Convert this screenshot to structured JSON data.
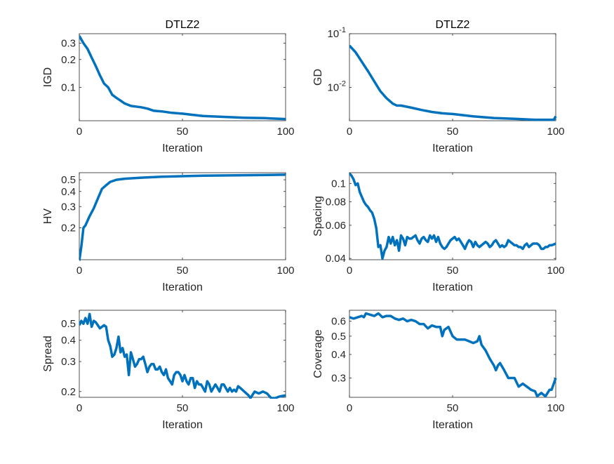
{
  "chart_data": [
    {
      "type": "line",
      "title": "DTLZ2",
      "xlabel": "Iteration",
      "ylabel": "IGD",
      "yscale": "log",
      "xlim": [
        0,
        100
      ],
      "ylim": [
        0.0436,
        0.38
      ],
      "xticks": [
        0,
        50,
        100
      ],
      "yticks": [
        0.1,
        0.2,
        0.3
      ],
      "yticklabels": [
        "0.1",
        "0.2",
        "0.3"
      ],
      "x": [
        0,
        2,
        4,
        6,
        8,
        10,
        12,
        14,
        16,
        18,
        20,
        22,
        25,
        30,
        33,
        36,
        40,
        45,
        50,
        55,
        60,
        70,
        80,
        90,
        100
      ],
      "y": [
        0.36,
        0.3,
        0.26,
        0.21,
        0.17,
        0.135,
        0.11,
        0.1,
        0.083,
        0.077,
        0.072,
        0.067,
        0.063,
        0.061,
        0.059,
        0.056,
        0.055,
        0.053,
        0.052,
        0.0505,
        0.049,
        0.048,
        0.047,
        0.0465,
        0.0455
      ]
    },
    {
      "type": "line",
      "title": "DTLZ2",
      "xlabel": "Iteration",
      "ylabel": "GD",
      "yscale": "log",
      "xlim": [
        0,
        100
      ],
      "ylim": [
        0.0024,
        0.1
      ],
      "xticks": [
        0,
        50,
        100
      ],
      "yticks": [
        0.01,
        0.1
      ],
      "yticklabels": [
        "10^-2",
        "10^-1"
      ],
      "x": [
        0,
        3,
        6,
        9,
        12,
        15,
        18,
        21,
        23,
        25,
        30,
        35,
        40,
        45,
        50,
        60,
        70,
        80,
        90,
        99,
        100
      ],
      "y": [
        0.06,
        0.045,
        0.03,
        0.02,
        0.013,
        0.0085,
        0.0063,
        0.005,
        0.0046,
        0.0046,
        0.0042,
        0.0038,
        0.0035,
        0.0033,
        0.0032,
        0.0029,
        0.0027,
        0.0026,
        0.0025,
        0.0025,
        0.0029
      ]
    },
    {
      "type": "line",
      "title": "",
      "xlabel": "Iteration",
      "ylabel": "HV",
      "yscale": "log",
      "xlim": [
        0,
        100
      ],
      "ylim": [
        0.109,
        0.572
      ],
      "xticks": [
        0,
        50,
        100
      ],
      "yticks": [
        0.2,
        0.3,
        0.4,
        0.5
      ],
      "yticklabels": [
        "0.2",
        "0.3",
        "0.4",
        "0.5"
      ],
      "x": [
        0,
        1,
        2,
        3,
        5,
        7,
        9,
        11,
        13,
        15,
        18,
        22,
        30,
        40,
        60,
        80,
        100
      ],
      "y": [
        0.107,
        0.14,
        0.2,
        0.21,
        0.25,
        0.29,
        0.35,
        0.42,
        0.45,
        0.48,
        0.5,
        0.51,
        0.52,
        0.53,
        0.54,
        0.545,
        0.55
      ]
    },
    {
      "type": "line",
      "title": "",
      "xlabel": "Iteration",
      "ylabel": "Spacing",
      "yscale": "log",
      "xlim": [
        0,
        100
      ],
      "ylim": [
        0.0394,
        0.114
      ],
      "xticks": [
        0,
        50,
        100
      ],
      "yticks": [
        0.04,
        0.06,
        0.08,
        0.1
      ],
      "yticklabels": [
        "0.04",
        "0.06",
        "0.08",
        "0.1"
      ],
      "x": [
        0,
        1,
        2,
        3,
        4,
        5,
        6,
        7,
        8,
        9,
        10,
        11,
        12,
        13,
        14,
        15,
        16,
        17,
        18,
        19,
        20,
        21,
        22,
        23,
        24,
        25,
        26,
        27,
        28,
        29,
        30,
        31,
        32,
        33,
        34,
        35,
        36,
        37,
        38,
        39,
        40,
        41,
        42,
        43,
        44,
        45,
        46,
        47,
        48,
        49,
        50,
        51,
        52,
        53,
        54,
        55,
        56,
        57,
        58,
        59,
        60,
        61,
        62,
        63,
        64,
        65,
        66,
        67,
        68,
        69,
        70,
        71,
        72,
        73,
        74,
        75,
        76,
        77,
        78,
        79,
        80,
        81,
        82,
        83,
        84,
        85,
        86,
        87,
        88,
        89,
        90,
        91,
        92,
        93,
        94,
        95,
        96,
        97,
        98,
        99,
        100
      ],
      "y": [
        0.113,
        0.11,
        0.105,
        0.098,
        0.1,
        0.09,
        0.085,
        0.08,
        0.077,
        0.075,
        0.072,
        0.07,
        0.065,
        0.058,
        0.046,
        0.047,
        0.04,
        0.044,
        0.046,
        0.052,
        0.048,
        0.052,
        0.047,
        0.05,
        0.044,
        0.053,
        0.051,
        0.047,
        0.052,
        0.051,
        0.051,
        0.052,
        0.053,
        0.05,
        0.048,
        0.051,
        0.052,
        0.05,
        0.049,
        0.053,
        0.051,
        0.053,
        0.049,
        0.052,
        0.048,
        0.046,
        0.045,
        0.046,
        0.048,
        0.05,
        0.051,
        0.052,
        0.05,
        0.051,
        0.049,
        0.047,
        0.045,
        0.048,
        0.05,
        0.049,
        0.046,
        0.049,
        0.047,
        0.046,
        0.047,
        0.048,
        0.049,
        0.048,
        0.046,
        0.047,
        0.049,
        0.05,
        0.048,
        0.046,
        0.047,
        0.046,
        0.047,
        0.05,
        0.049,
        0.048,
        0.047,
        0.047,
        0.046,
        0.046,
        0.045,
        0.047,
        0.048,
        0.046,
        0.047,
        0.048,
        0.048,
        0.048,
        0.047,
        0.045,
        0.045,
        0.046,
        0.046,
        0.047,
        0.047,
        0.0475,
        0.048
      ]
    },
    {
      "type": "line",
      "title": "",
      "xlabel": "Iteration",
      "ylabel": "Spread",
      "yscale": "log",
      "xlim": [
        0,
        100
      ],
      "ylim": [
        0.185,
        0.6
      ],
      "xticks": [
        0,
        50,
        100
      ],
      "yticks": [
        0.2,
        0.3,
        0.4,
        0.5
      ],
      "yticklabels": [
        "0.2",
        "0.3",
        "0.4",
        "0.5"
      ],
      "x": [
        0,
        1,
        2,
        3,
        4,
        5,
        6,
        7,
        8,
        10,
        12,
        13,
        14,
        15,
        16,
        17,
        18,
        19,
        20,
        21,
        22,
        23,
        24,
        25,
        26,
        27,
        28,
        29,
        30,
        31,
        32,
        33,
        34,
        35,
        36,
        37,
        38,
        39,
        40,
        41,
        42,
        43,
        44,
        45,
        46,
        47,
        48,
        49,
        50,
        51,
        52,
        53,
        54,
        55,
        56,
        57,
        58,
        59,
        60,
        61,
        62,
        63,
        64,
        65,
        66,
        67,
        68,
        69,
        70,
        71,
        72,
        73,
        74,
        75,
        76,
        77,
        78,
        80,
        82,
        83,
        85,
        87,
        89,
        91,
        93,
        95,
        97,
        100
      ],
      "y": [
        0.49,
        0.52,
        0.5,
        0.54,
        0.5,
        0.57,
        0.48,
        0.52,
        0.51,
        0.47,
        0.49,
        0.48,
        0.4,
        0.37,
        0.32,
        0.33,
        0.36,
        0.42,
        0.34,
        0.36,
        0.32,
        0.33,
        0.25,
        0.34,
        0.31,
        0.28,
        0.29,
        0.31,
        0.31,
        0.32,
        0.29,
        0.26,
        0.28,
        0.29,
        0.29,
        0.27,
        0.27,
        0.28,
        0.26,
        0.25,
        0.27,
        0.24,
        0.23,
        0.22,
        0.25,
        0.26,
        0.26,
        0.25,
        0.23,
        0.25,
        0.23,
        0.22,
        0.24,
        0.24,
        0.21,
        0.23,
        0.22,
        0.22,
        0.21,
        0.2,
        0.23,
        0.22,
        0.2,
        0.21,
        0.22,
        0.21,
        0.2,
        0.22,
        0.22,
        0.21,
        0.2,
        0.21,
        0.2,
        0.205,
        0.2,
        0.215,
        0.21,
        0.2,
        0.19,
        0.183,
        0.2,
        0.195,
        0.2,
        0.195,
        0.183,
        0.183,
        0.187,
        0.19
      ]
    },
    {
      "type": "line",
      "title": "",
      "xlabel": "Iteration",
      "ylabel": "Coverage",
      "yscale": "log",
      "xlim": [
        0,
        100
      ],
      "ylim": [
        0.237,
        0.686
      ],
      "xticks": [
        0,
        50,
        100
      ],
      "yticks": [
        0.3,
        0.4,
        0.5,
        0.6
      ],
      "yticklabels": [
        "0.3",
        "0.4",
        "0.5",
        "0.6"
      ],
      "x": [
        0,
        2,
        4,
        6,
        7,
        8,
        10,
        12,
        14,
        16,
        18,
        20,
        22,
        24,
        26,
        28,
        30,
        32,
        34,
        36,
        38,
        40,
        42,
        44,
        45,
        46,
        48,
        50,
        52,
        54,
        56,
        58,
        60,
        62,
        63,
        64,
        66,
        68,
        70,
        71,
        72,
        73,
        75,
        77,
        80,
        82,
        84,
        86,
        88,
        90,
        91,
        93,
        95,
        97,
        98,
        100
      ],
      "y": [
        0.63,
        0.62,
        0.63,
        0.64,
        0.63,
        0.66,
        0.65,
        0.64,
        0.66,
        0.63,
        0.64,
        0.64,
        0.62,
        0.61,
        0.62,
        0.6,
        0.61,
        0.6,
        0.58,
        0.58,
        0.55,
        0.57,
        0.56,
        0.56,
        0.5,
        0.54,
        0.56,
        0.5,
        0.48,
        0.48,
        0.48,
        0.47,
        0.46,
        0.47,
        0.5,
        0.45,
        0.42,
        0.38,
        0.35,
        0.33,
        0.35,
        0.36,
        0.33,
        0.3,
        0.3,
        0.27,
        0.28,
        0.27,
        0.26,
        0.255,
        0.24,
        0.25,
        0.24,
        0.26,
        0.26,
        0.3
      ]
    }
  ],
  "colors": {
    "line": "#0072BD",
    "axis": "#262626"
  }
}
